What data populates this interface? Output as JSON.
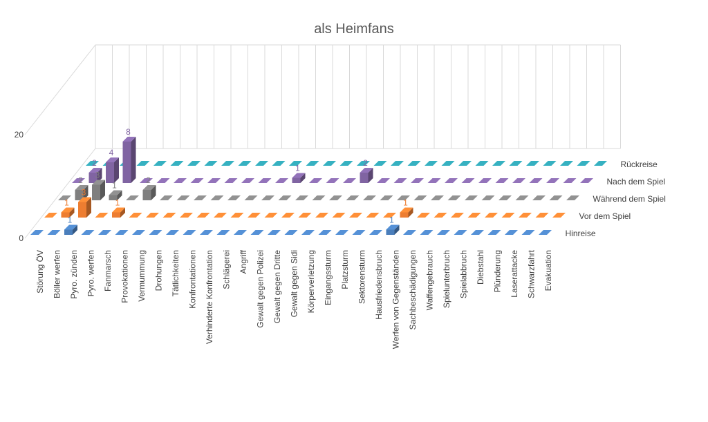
{
  "chart_data": {
    "type": "bar3d",
    "title": "als Heimfans",
    "categories": [
      "Störung ÖV",
      "Böller werfen",
      "Pyro. zünden",
      "Pyro. werfen",
      "Fanmarsch",
      "Provokationen",
      "Vermummung",
      "Drohungen",
      "Tätlichkeiten",
      "Konfrontationen",
      "Verhinderte Konfrontation",
      "Schlägerei",
      "Angriff",
      "Gewalt gegen Polizei",
      "Gewalt gegen Dritte",
      "Gewalt gegen Sidi",
      "Körperverletzung",
      "Eingangssturm",
      "Platzsturm",
      "Sektorensturm",
      "Hausfriedensbruch",
      "Werfen von Gegenständen",
      "Sachbeschädigungen",
      "Waffengebrauch",
      "Spielunterbruch",
      "Spielabbruch",
      "Diebstahl",
      "Plünderung",
      "Laserattacke",
      "Schwarzfahrt",
      "Evakuation"
    ],
    "series": [
      {
        "name": "Hinreise",
        "color": "#4a7ebb",
        "values": [
          0,
          0,
          1,
          0,
          0,
          0,
          0,
          0,
          0,
          0,
          0,
          0,
          0,
          0,
          0,
          0,
          0,
          0,
          0,
          0,
          0,
          1,
          0,
          0,
          0,
          0,
          0,
          0,
          0,
          0,
          0
        ]
      },
      {
        "name": "Vor dem Spiel",
        "color": "#ed7d31",
        "values": [
          0,
          1,
          3,
          0,
          1,
          0,
          0,
          0,
          0,
          0,
          0,
          0,
          0,
          0,
          0,
          0,
          0,
          0,
          0,
          0,
          0,
          1,
          0,
          0,
          0,
          0,
          0,
          0,
          0,
          0,
          0
        ]
      },
      {
        "name": "Während dem Spiel",
        "color": "#7f7f7f",
        "values": [
          0,
          2,
          3,
          1,
          0,
          2,
          0,
          0,
          0,
          0,
          0,
          0,
          0,
          0,
          0,
          0,
          0,
          0,
          0,
          0,
          0,
          0,
          0,
          0,
          0,
          0,
          0,
          0,
          0,
          0,
          0
        ]
      },
      {
        "name": "Nach dem Spiel",
        "color": "#8064a2",
        "values": [
          0,
          2,
          4,
          8,
          0,
          0,
          0,
          0,
          0,
          0,
          0,
          0,
          0,
          1,
          0,
          0,
          0,
          2,
          0,
          0,
          0,
          0,
          0,
          0,
          0,
          0,
          0,
          0,
          0,
          0,
          0
        ]
      },
      {
        "name": "Rückreise",
        "color": "#2f9aa8",
        "values": [
          0,
          0,
          0,
          0,
          0,
          0,
          0,
          0,
          0,
          0,
          0,
          0,
          0,
          0,
          0,
          0,
          0,
          0,
          0,
          0,
          0,
          0,
          0,
          0,
          0,
          0,
          0,
          0,
          0,
          0,
          0
        ]
      }
    ],
    "ylim": [
      0,
      20
    ],
    "yticks": [
      0,
      20
    ],
    "grid": true
  }
}
